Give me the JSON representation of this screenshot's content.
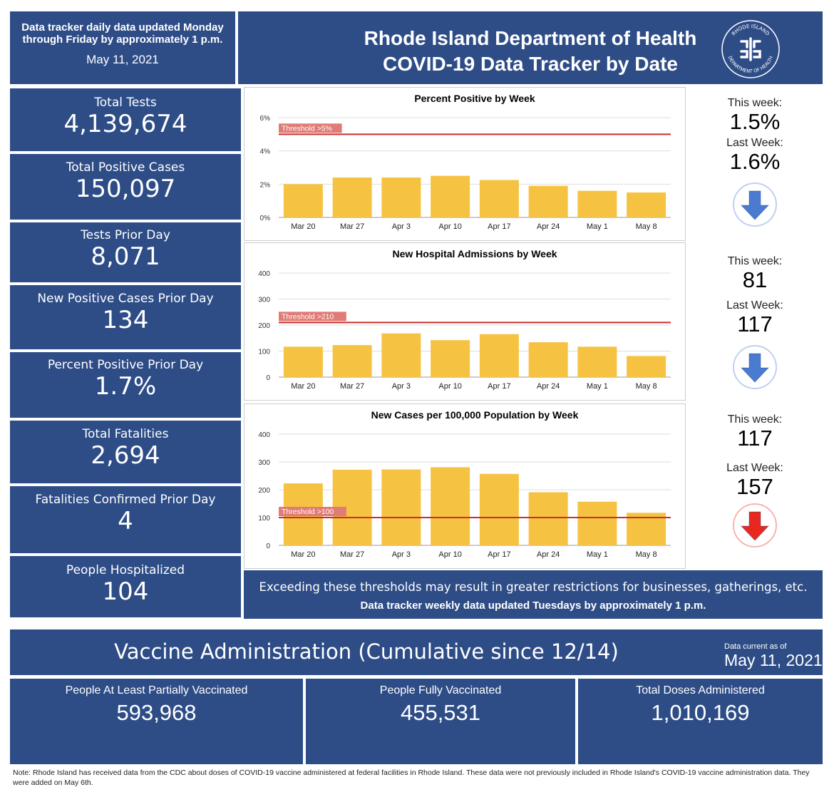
{
  "header": {
    "update_note": "Data tracker daily data updated Monday through Friday by approximately 1 p.m.",
    "date": "May 11, 2021",
    "title_line1": "Rhode Island Department of Health",
    "title_line2": "COVID-19 Data Tracker by Date",
    "seal_top": "RHODE ISLAND",
    "seal_bottom": "DEPARTMENT OF HEALTH"
  },
  "metrics": [
    {
      "label": "Total Tests",
      "value": "4,139,674"
    },
    {
      "label": "Total Positive Cases",
      "value": "150,097"
    },
    {
      "label": "Tests Prior Day",
      "value": "8,071"
    },
    {
      "label": "New Positive Cases Prior Day",
      "value": "134"
    },
    {
      "label": "Percent Positive Prior Day",
      "value": "1.7%"
    },
    {
      "label": "Total Fatalities",
      "value": "2,694"
    },
    {
      "label": "Fatalities Confirmed Prior Day",
      "value": "4"
    },
    {
      "label": "People Hospitalized",
      "value": "104"
    }
  ],
  "chart_data": [
    {
      "type": "bar",
      "title": "Percent Positive by Week",
      "categories": [
        "Mar 20",
        "Mar 27",
        "Apr 3",
        "Apr 10",
        "Apr 17",
        "Apr 24",
        "May 1",
        "May 8"
      ],
      "values": [
        2.0,
        2.4,
        2.4,
        2.5,
        2.25,
        1.9,
        1.6,
        1.5
      ],
      "yticks": [
        "0%",
        "2%",
        "4%",
        "6%"
      ],
      "ylim": [
        0,
        6
      ],
      "threshold": {
        "value": 5,
        "label": "Threshold >5%"
      },
      "bar_color": "#f6c242",
      "grid": true
    },
    {
      "type": "bar",
      "title": "New Hospital Admissions by Week",
      "categories": [
        "Mar 20",
        "Mar 27",
        "Apr 3",
        "Apr 10",
        "Apr 17",
        "Apr 24",
        "May 1",
        "May 8"
      ],
      "values": [
        117,
        123,
        168,
        142,
        165,
        134,
        117,
        81
      ],
      "yticks": [
        "0",
        "100",
        "200",
        "300",
        "400"
      ],
      "ylim": [
        0,
        400
      ],
      "threshold": {
        "value": 210,
        "label": "Threshold >210"
      },
      "bar_color": "#f6c242",
      "grid": true
    },
    {
      "type": "bar",
      "title": "New Cases per 100,000 Population by Week",
      "categories": [
        "Mar 20",
        "Mar 27",
        "Apr 3",
        "Apr 10",
        "Apr 17",
        "Apr 24",
        "May 1",
        "May 8"
      ],
      "values": [
        223,
        272,
        273,
        281,
        257,
        191,
        157,
        117
      ],
      "yticks": [
        "0",
        "100",
        "200",
        "300",
        "400"
      ],
      "ylim": [
        0,
        400
      ],
      "threshold": {
        "value": 100,
        "label": "Threshold >100"
      },
      "bar_color": "#f6c242",
      "grid": true
    }
  ],
  "side_panels": [
    {
      "this_label": "This week:",
      "this_value": "1.5%",
      "last_label": "Last Week:",
      "last_value": "1.6%",
      "arrow": "down-arrow-icon",
      "arrow_color": "#4a7bd0"
    },
    {
      "this_label": "This week:",
      "this_value": "81",
      "last_label": "Last Week:",
      "last_value": "117",
      "arrow": "down-arrow-icon",
      "arrow_color": "#4a7bd0"
    },
    {
      "this_label": "This week:",
      "this_value": "117",
      "last_label": "Last Week:",
      "last_value": "157",
      "arrow": "down-arrow-icon",
      "arrow_color": "#e8281e"
    }
  ],
  "thresholds_note": "Exceeding these thresholds may result in greater restrictions for businesses, gatherings, etc.",
  "weekly_note": "Data tracker weekly data updated Tuesdays by approximately 1 p.m.",
  "vaccine": {
    "title": "Vaccine Administration (Cumulative since 12/14)",
    "asof_label": "Data current as of",
    "asof_date": "May 11, 2021",
    "cells": [
      {
        "label": "People At Least Partially Vaccinated",
        "value": "593,968"
      },
      {
        "label": "People Fully Vaccinated",
        "value": "455,531"
      },
      {
        "label": "Total Doses Administered",
        "value": "1,010,169"
      }
    ]
  },
  "footnote": "Note: Rhode Island has received data from the CDC about doses of COVID-19 vaccine administered at federal facilities in Rhode Island. These data were not previously included in Rhode Island's COVID-19 vaccine administration data. They were added on May 6th.",
  "colors": {
    "panel_blue": "#2e4d87",
    "bar": "#f6c242",
    "threshold_line": "#c8302c",
    "threshold_label_bg": "#e07b75"
  }
}
